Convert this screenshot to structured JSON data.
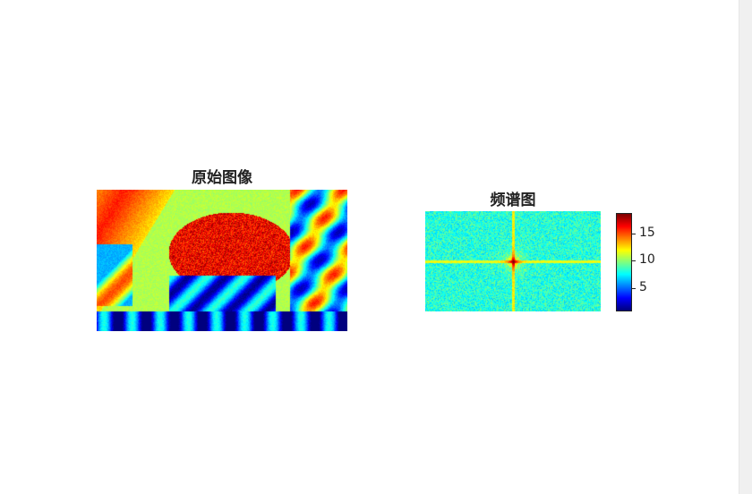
{
  "chart_data": [
    {
      "type": "heatmap",
      "title": "原始图像",
      "colormap": "jet"
    },
    {
      "type": "heatmap",
      "title": "频谱图",
      "colormap": "jet",
      "colorbar": {
        "ticks": [
          5,
          10,
          15
        ],
        "tick_labels": [
          "5",
          "10",
          "15"
        ],
        "range": [
          1,
          18.5
        ]
      }
    }
  ]
}
